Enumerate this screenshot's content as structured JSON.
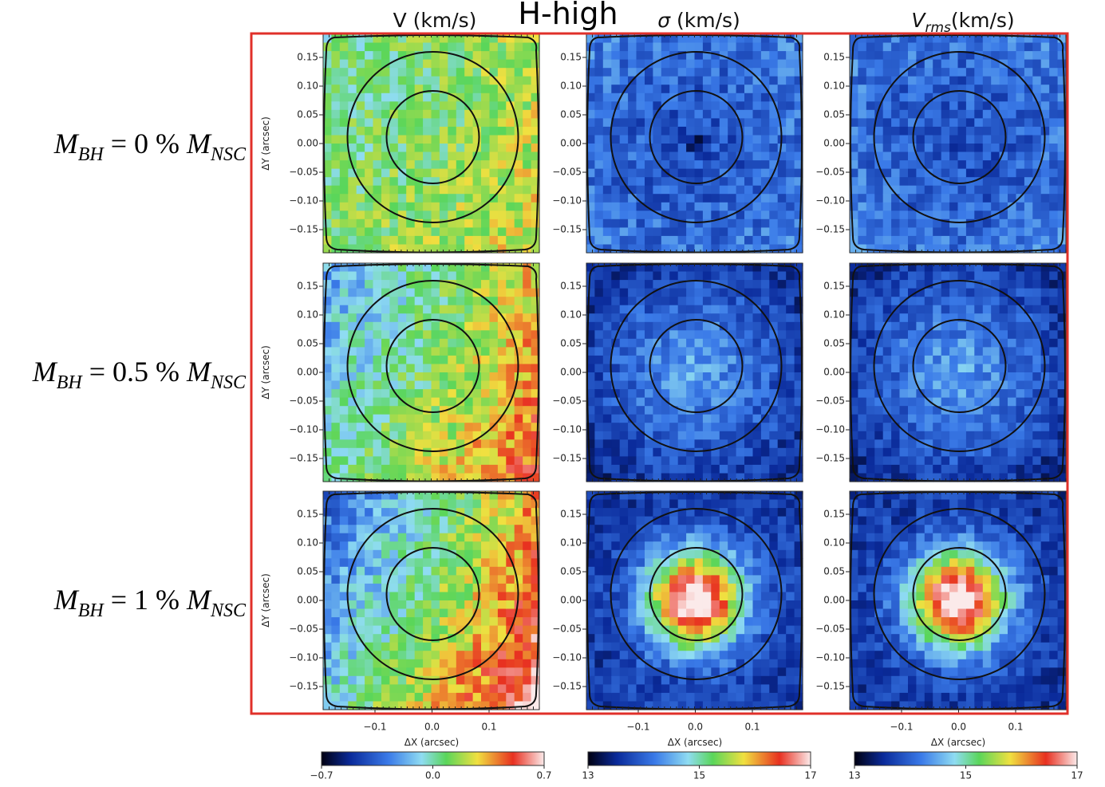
{
  "header": {
    "title": "H-high"
  },
  "columns": [
    {
      "title": "V (km/s)"
    },
    {
      "title_symbol": "σ",
      "title_unit": "(km/s)"
    },
    {
      "title_symbol": "V",
      "title_subscript": "rms",
      "title_unit": "(km/s)"
    }
  ],
  "row_labels": [
    {
      "symbol": "M",
      "subscript": "BH",
      "relation": " = 0 % ",
      "symbol2": "M",
      "subscript2": "NSC"
    },
    {
      "symbol": "M",
      "subscript": "BH",
      "relation": " = 0.5 % ",
      "symbol2": "M",
      "subscript2": "NSC"
    },
    {
      "symbol": "M",
      "subscript": "BH",
      "relation": " = 1 % ",
      "symbol2": "M",
      "subscript2": "NSC"
    }
  ],
  "axes": {
    "y_label": "ΔY (arcsec)",
    "x_label": "ΔX (arcsec)",
    "y_ticks": [
      "0.15",
      "0.10",
      "0.05",
      "0.00",
      "−0.05",
      "−0.10",
      "−0.15"
    ],
    "x_ticks": [
      "−0.1",
      "0.0",
      "0.1"
    ]
  },
  "colorbars": [
    {
      "ticks": [
        "−0.7",
        "0.0",
        "0.7"
      ]
    },
    {
      "ticks": [
        "13",
        "15",
        "17"
      ]
    },
    {
      "ticks": [
        "13",
        "15",
        "17"
      ]
    }
  ]
}
